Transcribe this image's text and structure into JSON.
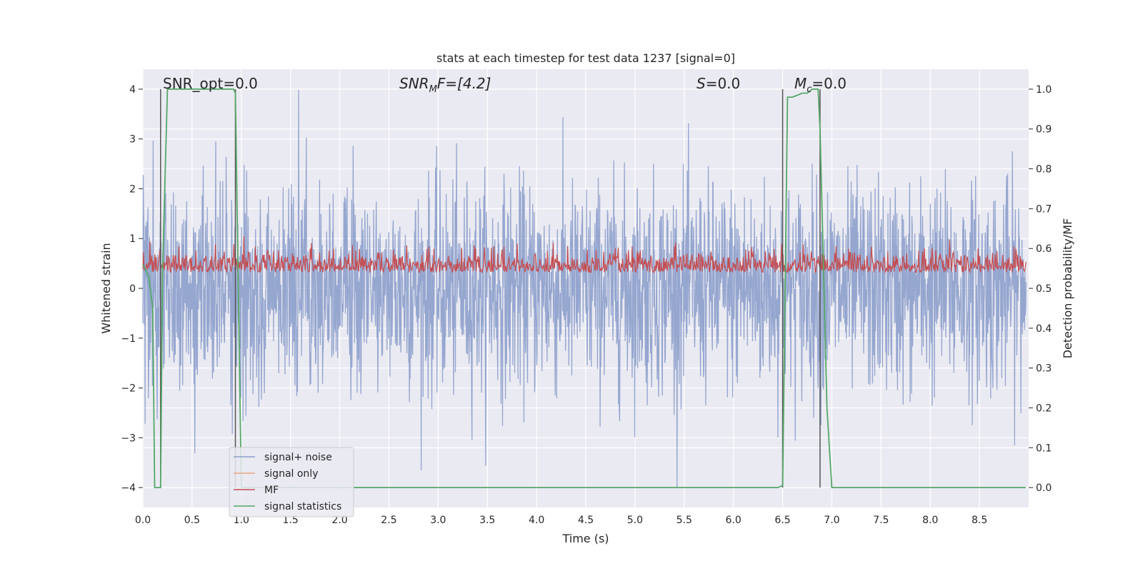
{
  "chart_data": {
    "type": "line",
    "title": "stats at each timestep for test data 1237 [signal=0]",
    "xlabel": "Time (s)",
    "ylabel_left": "Whitened strain",
    "ylabel_right": "Detection probability/MF",
    "xlim": [
      0,
      9.0
    ],
    "ylim_left": [
      -4.4,
      4.4
    ],
    "ylim_right": [
      -0.05,
      1.05
    ],
    "x_ticks": [
      "0.0",
      "0.5",
      "1.0",
      "1.5",
      "2.0",
      "2.5",
      "3.0",
      "3.5",
      "4.0",
      "4.5",
      "5.0",
      "5.5",
      "6.0",
      "6.5",
      "7.0",
      "7.5",
      "8.0",
      "8.5"
    ],
    "x_tick_values": [
      0,
      0.5,
      1,
      1.5,
      2,
      2.5,
      3,
      3.5,
      4,
      4.5,
      5,
      5.5,
      6,
      6.5,
      7,
      7.5,
      8,
      8.5
    ],
    "y_left_ticks": [
      "−4",
      "−3",
      "−2",
      "−1",
      "0",
      "1",
      "2",
      "3",
      "4"
    ],
    "y_left_tick_values": [
      -4,
      -3,
      -2,
      -1,
      0,
      1,
      2,
      3,
      4
    ],
    "y_right_ticks": [
      "0.0",
      "0.1",
      "0.2",
      "0.3",
      "0.4",
      "0.5",
      "0.6",
      "0.7",
      "0.8",
      "0.9",
      "1.0"
    ],
    "y_right_tick_values": [
      0,
      0.1,
      0.2,
      0.3,
      0.4,
      0.5,
      0.6,
      0.7,
      0.8,
      0.9,
      1.0
    ],
    "grid": true,
    "legend_position": "lower-left",
    "annotations": {
      "snr_opt": "SNR_opt=0.0",
      "snr_mf_main": "SNR",
      "snr_mf_sub": "M",
      "snr_mf_rest": "F=[4.2]",
      "s_main": "S",
      "s_rest": "=0.0",
      "mc_main": "M",
      "mc_sub": "c",
      "mc_rest": "=0.0"
    },
    "vertical_markers": [
      0.18,
      0.94,
      6.5,
      6.88
    ],
    "series": [
      {
        "name": "signal+ noise",
        "color": "#8c9fcb",
        "description": "white-noise strain, roughly within ±2.5 with peaks to ±4",
        "axis": "left"
      },
      {
        "name": "signal only",
        "color": "#e8a583",
        "values": [],
        "axis": "left"
      },
      {
        "name": "MF",
        "color": "#c44e52",
        "description": "matched-filter output fluctuating around 0.55 on right axis",
        "axis": "right"
      },
      {
        "name": "signal statistics",
        "color": "#55a868",
        "axis": "right",
        "x": [
          0.0,
          0.06,
          0.1,
          0.12,
          0.18,
          0.2,
          0.25,
          0.3,
          0.92,
          0.94,
          0.97,
          1.0,
          1.05,
          6.45,
          6.5,
          6.55,
          6.6,
          6.7,
          6.75,
          6.8,
          6.86,
          6.88,
          6.95,
          7.0,
          8.97
        ],
        "y": [
          0.56,
          0.53,
          0.45,
          0.0,
          0.0,
          0.55,
          1.0,
          1.0,
          1.0,
          0.99,
          0.5,
          0.0,
          0.0,
          0.0,
          0.005,
          0.98,
          0.98,
          0.99,
          0.99,
          1.0,
          1.0,
          0.9,
          0.2,
          0.0,
          0.0
        ]
      }
    ],
    "colors": {
      "axes_background": "#eaeaf2",
      "grid": "#ffffff",
      "marker_line": "#555555"
    }
  }
}
